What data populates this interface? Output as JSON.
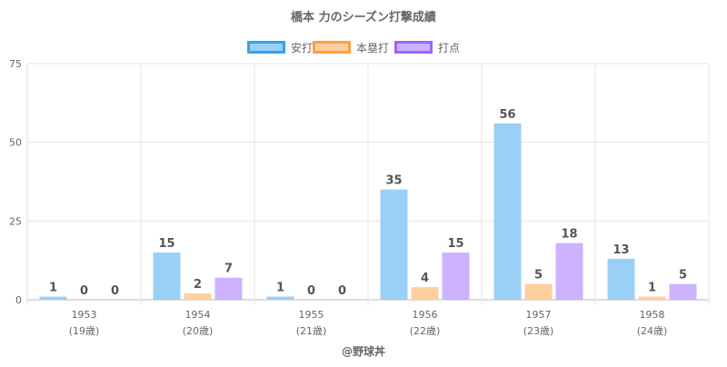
{
  "chart_data": {
    "type": "bar",
    "title": "橋本 力のシーズン打撃成績",
    "categories": [
      "1953",
      "1954",
      "1955",
      "1956",
      "1957",
      "1958"
    ],
    "sublabels": [
      "(19歳)",
      "(20歳)",
      "(21歳)",
      "(22歳)",
      "(23歳)",
      "(24歳)"
    ],
    "series": [
      {
        "name": "安打",
        "values": [
          1,
          15,
          1,
          35,
          56,
          13
        ],
        "fill": "#9ad0f5",
        "stroke": "#36a2eb"
      },
      {
        "name": "本塁打",
        "values": [
          0,
          2,
          0,
          4,
          5,
          1
        ],
        "fill": "#ffcf9f",
        "stroke": "#ff9f40"
      },
      {
        "name": "打点",
        "values": [
          0,
          7,
          0,
          15,
          18,
          5
        ],
        "fill": "#ccb2ff",
        "stroke": "#9966ff"
      }
    ],
    "ylim": [
      0,
      75
    ],
    "yticks": [
      0,
      25,
      50,
      75
    ],
    "grid": true,
    "legend": "top-center",
    "footer": "@野球丼"
  }
}
